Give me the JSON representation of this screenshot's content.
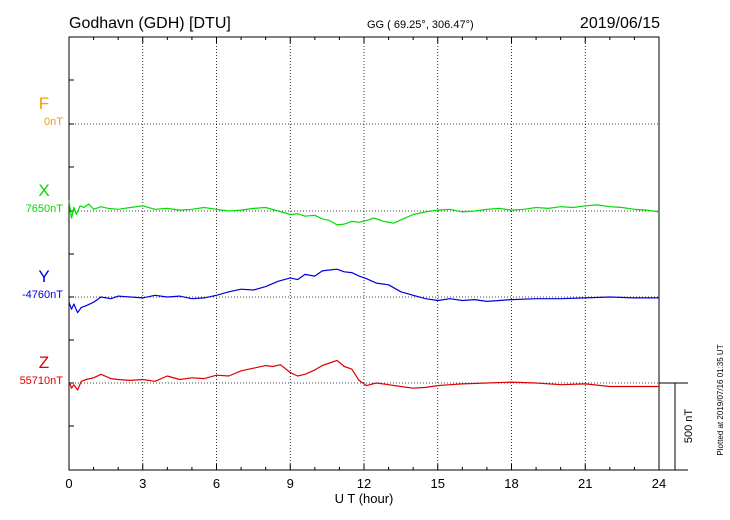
{
  "header": {
    "station": "Godhavn (GDH)  [DTU]",
    "coords": "GG ( 69.25°, 306.47°)",
    "date": "2019/06/15"
  },
  "plot_note": "Plotted at 2019/07/16 01:35 UT",
  "chart_data": {
    "type": "line",
    "xlabel": "U T (hour)",
    "xlim": [
      0,
      24
    ],
    "x_ticks": [
      "0",
      "3",
      "6",
      "9",
      "12",
      "15",
      "18",
      "21",
      "24"
    ],
    "scale_bar": {
      "label": "500 nT",
      "value_nT": 500
    },
    "grid": true,
    "series": [
      {
        "name": "F",
        "baseline": "0nT",
        "color": "#f0a000",
        "values": []
      },
      {
        "name": "X",
        "baseline": "7650nT",
        "color": "#00dd00",
        "x": [
          0,
          0.1,
          0.2,
          0.3,
          0.45,
          0.6,
          0.8,
          1.0,
          1.3,
          1.6,
          2.0,
          2.5,
          3.0,
          3.5,
          4.0,
          4.5,
          5.0,
          5.5,
          6.0,
          6.5,
          7.0,
          7.5,
          8.0,
          8.5,
          9.0,
          9.3,
          9.6,
          10.0,
          10.3,
          10.6,
          10.9,
          11.2,
          11.5,
          11.8,
          12.1,
          12.4,
          12.8,
          13.2,
          13.6,
          14.0,
          14.5,
          15.0,
          15.5,
          16.0,
          16.5,
          17.0,
          17.5,
          18.0,
          18.5,
          19.0,
          19.5,
          20.0,
          20.5,
          21.0,
          21.5,
          22.0,
          22.5,
          23.0,
          23.5,
          24.0
        ],
        "values": [
          60,
          -40,
          20,
          -20,
          30,
          20,
          40,
          10,
          25,
          15,
          10,
          20,
          30,
          10,
          15,
          5,
          10,
          20,
          10,
          0,
          5,
          15,
          20,
          0,
          -20,
          -15,
          -30,
          -25,
          -45,
          -55,
          -80,
          -75,
          -60,
          -65,
          -55,
          -40,
          -60,
          -70,
          -45,
          -20,
          -5,
          5,
          10,
          -5,
          0,
          10,
          15,
          5,
          10,
          20,
          15,
          25,
          20,
          30,
          35,
          25,
          20,
          10,
          5,
          -5
        ],
        "ylim": [
          -300,
          300
        ]
      },
      {
        "name": "Y",
        "baseline": "-4760nT",
        "color": "#0000dd",
        "x": [
          0,
          0.1,
          0.2,
          0.35,
          0.5,
          0.7,
          1.0,
          1.3,
          1.7,
          2.0,
          2.5,
          3.0,
          3.5,
          4.0,
          4.5,
          5.0,
          5.5,
          6.0,
          6.5,
          7.0,
          7.5,
          8.0,
          8.5,
          9.0,
          9.3,
          9.6,
          10.0,
          10.3,
          10.6,
          10.9,
          11.2,
          11.5,
          11.8,
          12.1,
          12.5,
          13.0,
          13.5,
          14.0,
          14.5,
          15.0,
          15.5,
          16.0,
          16.5,
          17.0,
          17.5,
          18.0,
          19.0,
          20.0,
          21.0,
          22.0,
          23.0,
          24.0
        ],
        "values": [
          -30,
          -70,
          -40,
          -90,
          -60,
          -50,
          -30,
          0,
          -10,
          5,
          0,
          -5,
          10,
          0,
          5,
          -10,
          -5,
          10,
          30,
          45,
          40,
          60,
          90,
          110,
          100,
          130,
          120,
          150,
          155,
          160,
          145,
          140,
          120,
          105,
          80,
          70,
          30,
          10,
          -10,
          -20,
          -10,
          -20,
          -15,
          -25,
          -20,
          -15,
          -10,
          -10,
          -5,
          0,
          -5,
          -5
        ],
        "ylim": [
          -300,
          300
        ]
      },
      {
        "name": "Z",
        "baseline": "55710nT",
        "color": "#dd0000",
        "x": [
          0,
          0.1,
          0.2,
          0.35,
          0.5,
          0.7,
          1.0,
          1.3,
          1.7,
          2.0,
          2.5,
          3.0,
          3.5,
          4.0,
          4.5,
          5.0,
          5.5,
          6.0,
          6.5,
          7.0,
          7.5,
          8.0,
          8.3,
          8.6,
          9.0,
          9.3,
          9.6,
          10.0,
          10.3,
          10.6,
          10.9,
          11.2,
          11.5,
          11.8,
          12.1,
          12.5,
          13.0,
          13.5,
          14.0,
          14.5,
          15.0,
          15.5,
          16.0,
          17.0,
          18.0,
          19.0,
          20.0,
          21.0,
          22.0,
          23.0,
          24.0
        ],
        "values": [
          10,
          -30,
          -10,
          -40,
          10,
          20,
          30,
          50,
          25,
          20,
          15,
          20,
          10,
          40,
          20,
          30,
          25,
          45,
          40,
          70,
          85,
          100,
          95,
          105,
          60,
          40,
          50,
          75,
          100,
          115,
          130,
          95,
          80,
          15,
          -15,
          0,
          -10,
          -20,
          -30,
          -25,
          -15,
          -10,
          -5,
          0,
          5,
          0,
          -10,
          -5,
          -20,
          -20,
          -20
        ],
        "ylim": [
          -300,
          300
        ]
      }
    ]
  }
}
